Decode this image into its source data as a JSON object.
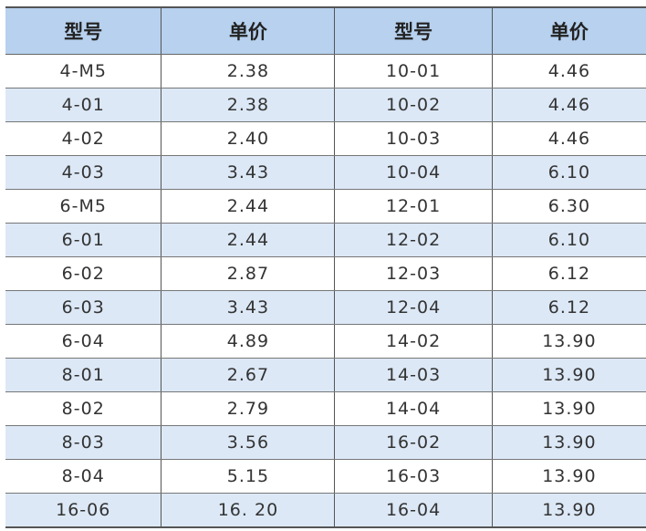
{
  "headers": [
    "型号",
    "单价",
    "型号",
    "单价"
  ],
  "rows": [
    [
      "4-M5",
      "2.38",
      "10-01",
      "4.46"
    ],
    [
      "4-01",
      "2.38",
      "10-02",
      "4.46"
    ],
    [
      "4-02",
      "2.40",
      "10-03",
      "4.46"
    ],
    [
      "4-03",
      "3.43",
      "10-04",
      "6.10"
    ],
    [
      "6-M5",
      "2.44",
      "12-01",
      "6.30"
    ],
    [
      "6-01",
      "2.44",
      "12-02",
      "6.10"
    ],
    [
      "6-02",
      "2.87",
      "12-03",
      "6.12"
    ],
    [
      "6-03",
      "3.43",
      "12-04",
      "6.12"
    ],
    [
      "6-04",
      "4.89",
      "14-02",
      "13.90"
    ],
    [
      "8-01",
      "2.67",
      "14-03",
      "13.90"
    ],
    [
      "8-02",
      "2.79",
      "14-04",
      "13.90"
    ],
    [
      "8-03",
      "3.56",
      "16-02",
      "13.90"
    ],
    [
      "8-04",
      "5.15",
      "16-03",
      "13.90"
    ],
    [
      "16-06",
      "16. 20",
      "16-04",
      "13.90"
    ]
  ],
  "colors": {
    "header_bg": "#b7d1ee",
    "stripe_bg": "#dce8f6"
  }
}
